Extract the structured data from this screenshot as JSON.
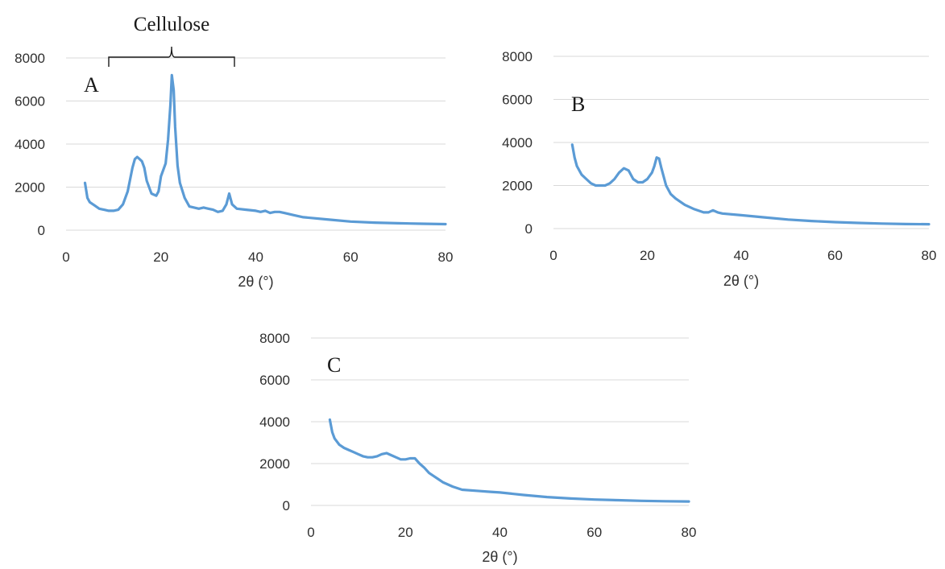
{
  "chart_data": [
    {
      "type": "line",
      "panel_label": "A",
      "xlabel": "2θ (°)",
      "ylabel": "",
      "xlim": [
        0,
        80
      ],
      "ylim": [
        0,
        8000
      ],
      "x_ticks": [
        0,
        20,
        40,
        60,
        80
      ],
      "y_ticks": [
        0,
        2000,
        4000,
        6000,
        8000
      ],
      "grid": "horizontal",
      "line_color": "#5b9bd5",
      "annotation": {
        "text": "Cellulose",
        "x_range": [
          9,
          35.5
        ]
      },
      "series": [
        {
          "x": [
            4,
            4.5,
            5,
            6,
            7,
            8,
            9,
            10,
            11,
            12,
            13,
            14,
            14.5,
            15,
            15.5,
            16,
            16.5,
            17,
            18,
            19,
            19.5,
            20,
            20.5,
            21,
            21.5,
            22,
            22.3,
            22.7,
            23,
            23.5,
            24,
            25,
            26,
            27,
            28,
            29,
            30,
            31,
            32,
            33,
            33.8,
            34.4,
            35,
            36,
            38,
            40,
            41,
            42,
            43,
            44,
            45,
            46,
            48,
            50,
            55,
            60,
            65,
            70,
            75,
            80
          ],
          "values": [
            2200,
            1500,
            1300,
            1150,
            1000,
            950,
            900,
            900,
            950,
            1200,
            1800,
            2900,
            3300,
            3400,
            3300,
            3200,
            2900,
            2300,
            1700,
            1600,
            1800,
            2500,
            2800,
            3100,
            4200,
            5800,
            7200,
            6500,
            4800,
            3000,
            2200,
            1500,
            1100,
            1050,
            1000,
            1050,
            1000,
            950,
            850,
            900,
            1200,
            1700,
            1200,
            1000,
            950,
            900,
            850,
            900,
            800,
            850,
            850,
            800,
            700,
            600,
            500,
            400,
            350,
            320,
            300,
            280
          ]
        }
      ]
    },
    {
      "type": "line",
      "panel_label": "B",
      "xlabel": "2θ (°)",
      "ylabel": "",
      "xlim": [
        0,
        80
      ],
      "ylim": [
        0,
        8000
      ],
      "x_ticks": [
        0,
        20,
        40,
        60,
        80
      ],
      "y_ticks": [
        0,
        2000,
        4000,
        6000,
        8000
      ],
      "grid": "horizontal",
      "line_color": "#5b9bd5",
      "series": [
        {
          "x": [
            4,
            4.5,
            5,
            6,
            7,
            8,
            9,
            10,
            11,
            12,
            13,
            14,
            15,
            16,
            17,
            18,
            19,
            20,
            21,
            21.5,
            22,
            22.5,
            23,
            24,
            25,
            26,
            28,
            30,
            32,
            33,
            34,
            35,
            36,
            40,
            45,
            50,
            55,
            60,
            65,
            70,
            75,
            80
          ],
          "values": [
            3900,
            3300,
            2900,
            2500,
            2300,
            2100,
            2000,
            2000,
            2000,
            2100,
            2300,
            2600,
            2800,
            2700,
            2300,
            2150,
            2150,
            2300,
            2600,
            2900,
            3300,
            3250,
            2800,
            2000,
            1600,
            1400,
            1100,
            900,
            750,
            750,
            850,
            750,
            700,
            620,
            520,
            420,
            350,
            300,
            260,
            230,
            210,
            200
          ]
        }
      ]
    },
    {
      "type": "line",
      "panel_label": "C",
      "xlabel": "2θ (°)",
      "ylabel": "",
      "xlim": [
        0,
        80
      ],
      "ylim": [
        0,
        8000
      ],
      "x_ticks": [
        0,
        20,
        40,
        60,
        80
      ],
      "y_ticks": [
        0,
        2000,
        4000,
        6000,
        8000
      ],
      "grid": "horizontal",
      "line_color": "#5b9bd5",
      "series": [
        {
          "x": [
            4,
            4.5,
            5,
            6,
            7,
            8,
            9,
            10,
            11,
            12,
            13,
            14,
            15,
            16,
            17,
            18,
            19,
            20,
            21,
            22,
            23,
            24,
            25,
            26,
            27,
            28,
            30,
            32,
            35,
            38,
            40,
            45,
            50,
            55,
            60,
            65,
            70,
            75,
            80
          ],
          "values": [
            4100,
            3500,
            3200,
            2900,
            2750,
            2650,
            2550,
            2450,
            2350,
            2300,
            2300,
            2350,
            2450,
            2500,
            2400,
            2300,
            2200,
            2200,
            2250,
            2250,
            2000,
            1800,
            1550,
            1400,
            1250,
            1100,
            900,
            750,
            700,
            650,
            620,
            500,
            400,
            330,
            280,
            250,
            220,
            200,
            190
          ]
        }
      ]
    }
  ]
}
